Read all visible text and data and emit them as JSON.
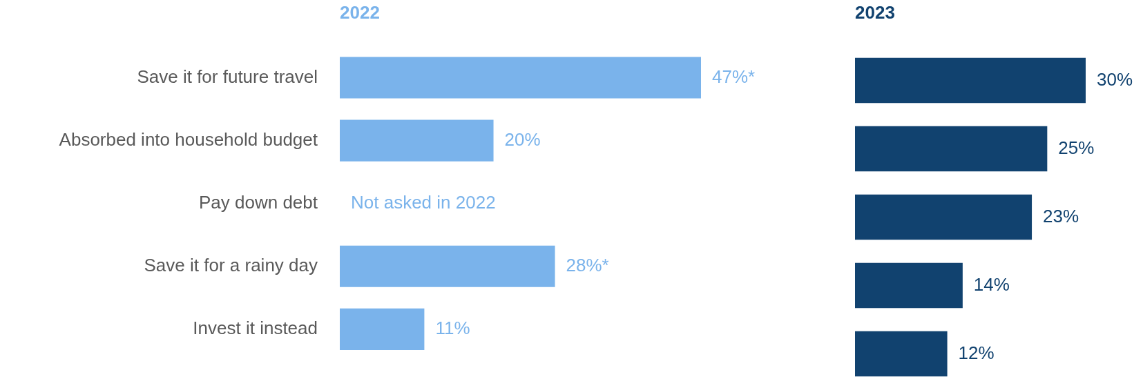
{
  "chart_data": [
    {
      "type": "bar",
      "orientation": "horizontal",
      "title": "2022",
      "categories": [
        "Save it for future travel",
        "Absorbed into household budget",
        "Pay down debt",
        "Save it for a rainy day",
        "Invest it instead"
      ],
      "series": [
        {
          "color": "#7ab3eb",
          "values": [
            47,
            20,
            null,
            28,
            11
          ],
          "value_labels": [
            "47%*",
            "20%",
            null,
            "28%*",
            "11%"
          ]
        }
      ],
      "tick_labels": "y",
      "grid": false,
      "legend": false,
      "annotations": [
        "Not asked in 2022"
      ]
    },
    {
      "type": "bar",
      "orientation": "horizontal",
      "title": "2023",
      "categories": [
        null,
        null,
        null,
        null,
        null
      ],
      "series": [
        {
          "color": "#11426f",
          "values": [
            30,
            25,
            23,
            14,
            12
          ],
          "value_labels": [
            "30%",
            "25%",
            "23%",
            "14%",
            "12%"
          ]
        }
      ],
      "tick_labels": false,
      "grid": false,
      "legend": false
    }
  ]
}
